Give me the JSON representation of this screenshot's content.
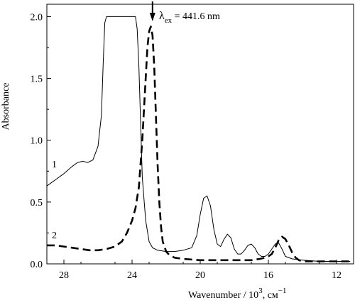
{
  "chart_data": {
    "type": "line",
    "xlabel": "Wavenumber / 10",
    "xlabel_exp": "3",
    "xlabel_unit": ", см",
    "xlabel_unit_exp": "−1",
    "ylabel": "Absorbance",
    "xlim": [
      29,
      11
    ],
    "ylim": [
      0,
      2.1
    ],
    "x_ticks": [
      28,
      24,
      20,
      16,
      12
    ],
    "x_tick_labels": [
      "28",
      "24",
      "20",
      "16",
      "12"
    ],
    "y_ticks": [
      0,
      0.5,
      1.0,
      1.5,
      2.0
    ],
    "y_tick_labels": [
      "0.0",
      "0.5",
      "1.0",
      "1.5",
      "2.0"
    ],
    "grid": false,
    "series": [
      {
        "name": "1",
        "style": "solid",
        "color": "#000000",
        "x": [
          29.0,
          28.5,
          28.0,
          27.5,
          27.2,
          26.9,
          26.6,
          26.3,
          26.0,
          25.8,
          25.7,
          25.6,
          25.5,
          25.2,
          24.5,
          24.0,
          23.8,
          23.7,
          23.6,
          23.5,
          23.4,
          23.2,
          23.0,
          22.8,
          22.5,
          22.0,
          21.5,
          21.0,
          20.5,
          20.2,
          20.0,
          19.8,
          19.6,
          19.4,
          19.2,
          19.0,
          18.8,
          18.6,
          18.4,
          18.2,
          18.0,
          17.8,
          17.6,
          17.4,
          17.2,
          17.0,
          16.8,
          16.6,
          16.4,
          16.2,
          16.0,
          15.8,
          15.6,
          15.4,
          15.2,
          15.0,
          14.6,
          14.0,
          13.0,
          12.0,
          11.2
        ],
        "y": [
          0.63,
          0.68,
          0.73,
          0.79,
          0.82,
          0.83,
          0.82,
          0.84,
          0.95,
          1.2,
          1.6,
          1.95,
          2.0,
          2.0,
          2.0,
          2.0,
          2.0,
          1.9,
          1.6,
          1.15,
          0.7,
          0.35,
          0.18,
          0.13,
          0.11,
          0.1,
          0.1,
          0.11,
          0.13,
          0.23,
          0.4,
          0.53,
          0.55,
          0.47,
          0.28,
          0.16,
          0.14,
          0.2,
          0.24,
          0.21,
          0.12,
          0.08,
          0.08,
          0.11,
          0.15,
          0.16,
          0.13,
          0.08,
          0.06,
          0.06,
          0.08,
          0.12,
          0.16,
          0.17,
          0.12,
          0.06,
          0.04,
          0.03,
          0.02,
          0.02,
          0.02
        ]
      },
      {
        "name": "2",
        "style": "dashed",
        "color": "#000000",
        "x": [
          29.0,
          28.5,
          28.0,
          27.5,
          27.0,
          26.5,
          26.0,
          25.5,
          25.0,
          24.6,
          24.3,
          24.0,
          23.8,
          23.6,
          23.4,
          23.2,
          23.1,
          23.0,
          22.9,
          22.8,
          22.7,
          22.6,
          22.5,
          22.4,
          22.3,
          22.2,
          22.0,
          21.8,
          21.5,
          21.0,
          20.0,
          19.0,
          18.0,
          17.0,
          16.5,
          16.2,
          16.0,
          15.8,
          15.6,
          15.4,
          15.2,
          15.0,
          14.8,
          14.6,
          14.4,
          14.2,
          14.0,
          13.0,
          12.0,
          11.2
        ],
        "y": [
          0.15,
          0.15,
          0.14,
          0.13,
          0.12,
          0.11,
          0.11,
          0.12,
          0.14,
          0.18,
          0.25,
          0.35,
          0.45,
          0.62,
          1.0,
          1.5,
          1.75,
          1.88,
          1.92,
          1.85,
          1.6,
          1.2,
          0.8,
          0.5,
          0.3,
          0.18,
          0.1,
          0.07,
          0.05,
          0.04,
          0.03,
          0.03,
          0.03,
          0.03,
          0.04,
          0.05,
          0.06,
          0.08,
          0.13,
          0.19,
          0.22,
          0.2,
          0.15,
          0.09,
          0.05,
          0.03,
          0.02,
          0.02,
          0.02,
          0.02
        ]
      }
    ],
    "annotations": {
      "arrow_x": 22.8,
      "lambda": "λ",
      "ex_sub": "ex",
      "text": " = 441.6 nm"
    }
  }
}
